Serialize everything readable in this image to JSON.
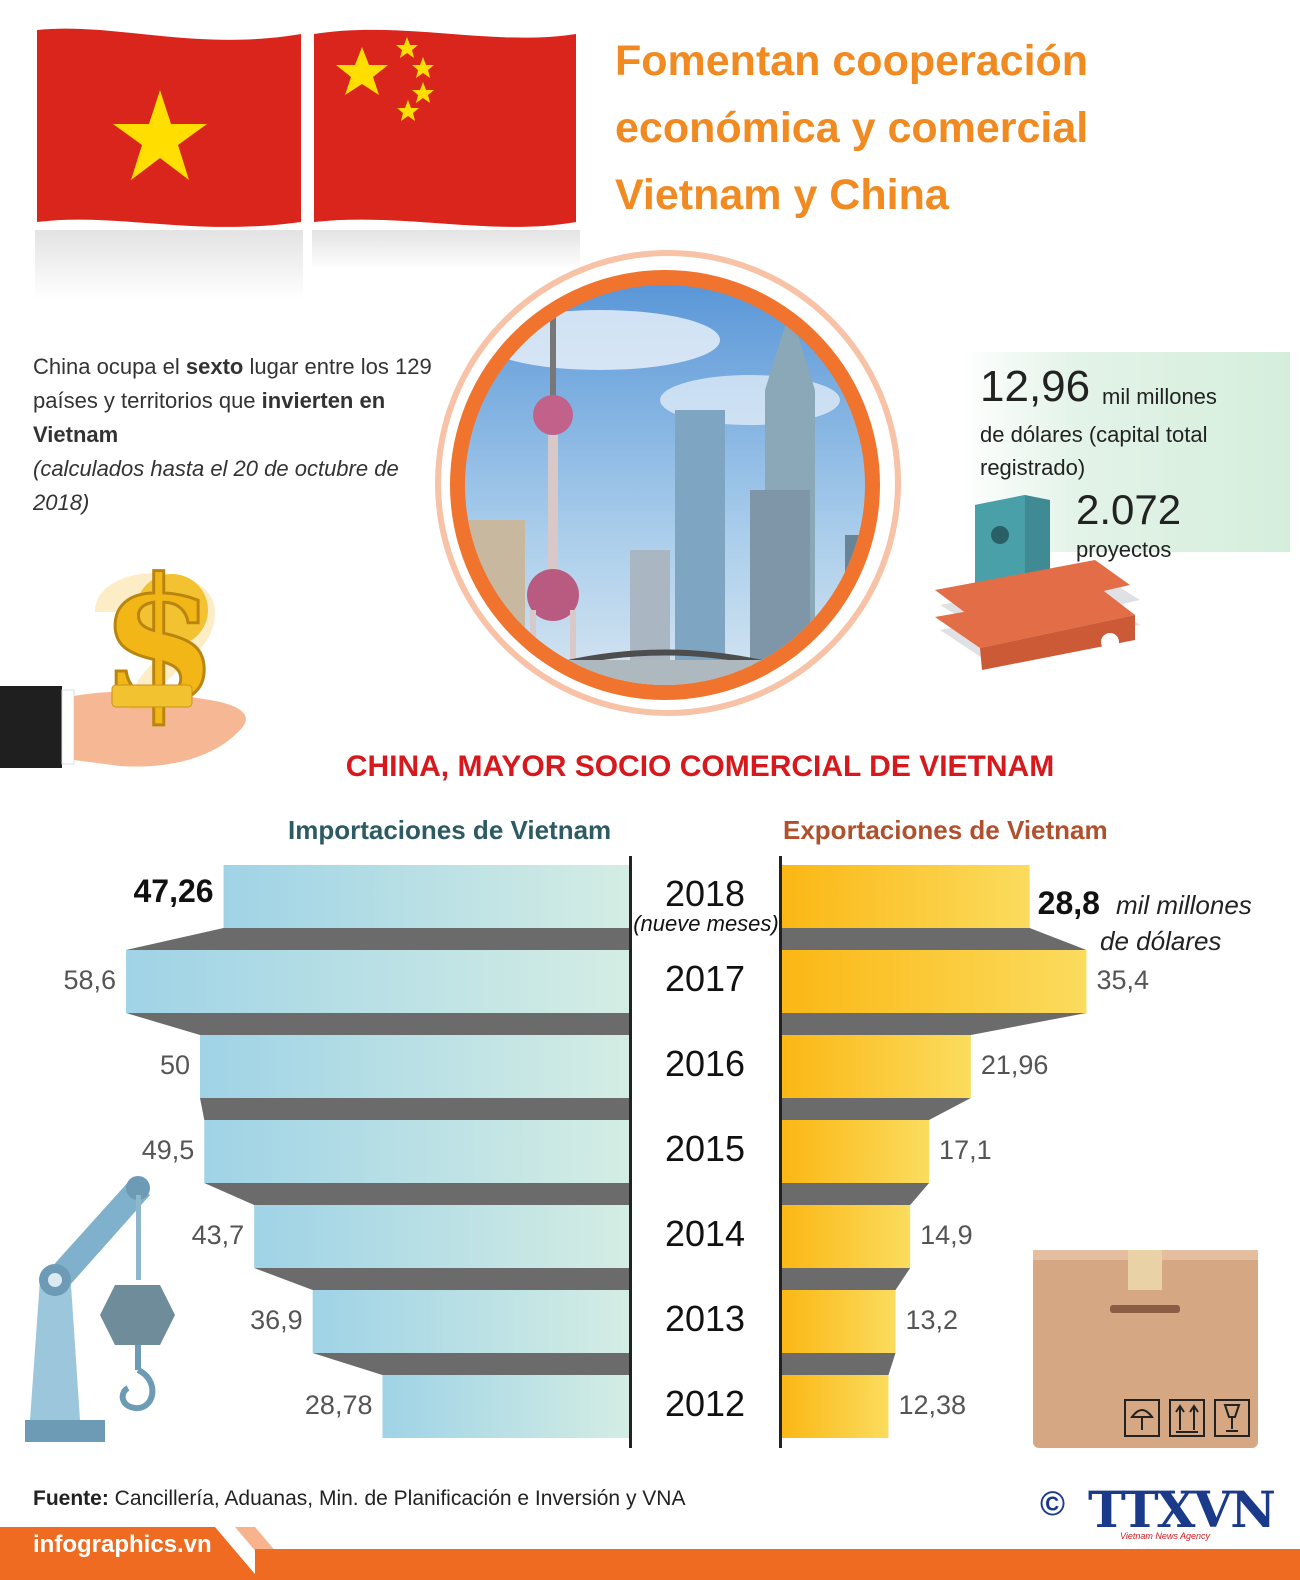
{
  "title": {
    "line1": "Fomentan cooperación",
    "line2": "económica y comercial",
    "line3": "Vietnam y China"
  },
  "colors": {
    "title": "#f08a21",
    "section_title": "#d7191e",
    "import_bar": "#a6d8e8",
    "export_bar": "#fbc02d",
    "vietnam_flag": "#da251d",
    "star": "#ffde00"
  },
  "investment": {
    "p1": "China ocupa el ",
    "p1_bold": "sexto",
    "p2": " lugar entre los 129 países y territorios que ",
    "p2_bold": "invierten en Vietnam",
    "note": "(calculados hasta el 20 de octubre de 2018)"
  },
  "capital": {
    "value": "12,96",
    "unit": "mil millones",
    "desc": "de dólares (capital total registrado)",
    "projects_value": "2.072",
    "projects_label": "proyectos"
  },
  "section_title": "CHINA, MAYOR SOCIO COMERCIAL DE VIETNAM",
  "unit_label_1": "mil millones",
  "unit_label_2": "de dólares",
  "chart_data": {
    "type": "bar",
    "orientation": "horizontal-diverging",
    "categories": [
      "2018",
      "2017",
      "2016",
      "2015",
      "2014",
      "2013",
      "2012"
    ],
    "category_note": "(nueve meses)",
    "series": [
      {
        "name": "Importaciones de Vietnam",
        "values": [
          47.26,
          58.6,
          50,
          49.5,
          43.7,
          36.9,
          28.78
        ],
        "labels": [
          "47,26",
          "58,6",
          "50",
          "49,5",
          "43,7",
          "36,9",
          "28,78"
        ]
      },
      {
        "name": "Exportaciones de Vietnam",
        "values": [
          28.8,
          35.4,
          21.96,
          17.1,
          14.9,
          13.2,
          12.38
        ],
        "labels": [
          "28,8",
          "35,4",
          "21,96",
          "17,1",
          "14,9",
          "13,2",
          "12,38"
        ]
      }
    ]
  },
  "footer": {
    "source_label": "Fuente:",
    "source_text": " Cancillería, Aduanas, Min. de Planificación e Inversión y VNA",
    "site": "infographics.vn",
    "copyright": "©",
    "agency": "TTXVN",
    "agency_sub": "Vietnam News Agency"
  }
}
